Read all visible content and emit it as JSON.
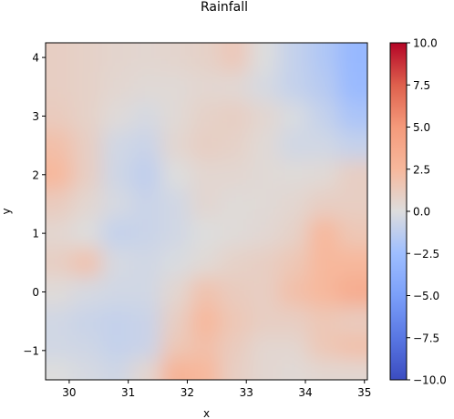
{
  "chart_data": {
    "type": "heatmap",
    "title": "Rainfall",
    "xlabel": "x",
    "ylabel": "y",
    "xlim": [
      29.6,
      35.05
    ],
    "ylim": [
      -1.5,
      4.25
    ],
    "x_ticks": [
      30,
      31,
      32,
      33,
      34,
      35
    ],
    "y_ticks": [
      -1,
      0,
      1,
      2,
      3,
      4
    ],
    "colormap": "coolwarm",
    "colorbar": {
      "vmin": -10.0,
      "vmax": 10.0,
      "ticks": [
        -10.0,
        -7.5,
        -5.0,
        -2.5,
        0.0,
        2.5,
        5.0,
        7.5,
        10.0
      ],
      "tick_labels": [
        "−10.0",
        "−7.5",
        "−5.0",
        "−2.5",
        "0.0",
        "2.5",
        "5.0",
        "7.5",
        "10.0"
      ]
    },
    "x_centers": [
      29.8,
      30.3,
      30.8,
      31.3,
      31.8,
      32.3,
      32.8,
      33.3,
      33.8,
      34.3,
      34.8
    ],
    "y_centers": [
      4.0,
      3.5,
      3.0,
      2.5,
      2.0,
      1.5,
      1.0,
      0.5,
      0.0,
      -0.5,
      -1.0,
      -1.3
    ],
    "values": [
      [
        1.0,
        0.8,
        0.6,
        0.5,
        0.6,
        0.8,
        1.4,
        0.0,
        -1.0,
        -1.8,
        -3.0
      ],
      [
        1.0,
        0.8,
        0.5,
        0.3,
        0.3,
        0.5,
        0.4,
        -0.3,
        -1.0,
        -1.5,
        -2.8
      ],
      [
        1.2,
        0.8,
        0.2,
        -0.3,
        0.3,
        0.8,
        1.0,
        0.5,
        -0.2,
        -1.0,
        -2.0
      ],
      [
        2.0,
        1.0,
        -0.5,
        -0.8,
        0.5,
        1.0,
        0.8,
        0.3,
        -0.5,
        -0.5,
        -1.0
      ],
      [
        2.5,
        1.0,
        -0.6,
        -1.2,
        0.0,
        0.5,
        0.5,
        0.3,
        0.2,
        0.3,
        1.0
      ],
      [
        1.2,
        0.5,
        -0.3,
        -0.8,
        -0.5,
        0.5,
        0.2,
        0.3,
        0.5,
        1.0,
        1.0
      ],
      [
        0.5,
        0.0,
        -1.0,
        -0.8,
        -0.5,
        0.0,
        0.2,
        0.4,
        0.8,
        2.5,
        1.5
      ],
      [
        1.0,
        1.8,
        -0.3,
        -0.5,
        -0.2,
        0.3,
        0.8,
        1.0,
        1.5,
        2.5,
        2.5
      ],
      [
        0.2,
        -0.3,
        -0.5,
        -0.5,
        0.5,
        1.8,
        1.2,
        1.0,
        2.0,
        2.5,
        3.5
      ],
      [
        -0.5,
        -0.8,
        -1.0,
        -0.8,
        1.0,
        2.5,
        1.5,
        1.0,
        1.0,
        1.5,
        1.2
      ],
      [
        -0.5,
        -0.6,
        -1.0,
        -0.8,
        1.5,
        2.0,
        1.2,
        0.5,
        0.5,
        1.5,
        2.0
      ],
      [
        0.0,
        -0.3,
        -0.6,
        0.5,
        3.0,
        2.5,
        1.0,
        0.5,
        0.3,
        0.5,
        0.5
      ]
    ]
  }
}
